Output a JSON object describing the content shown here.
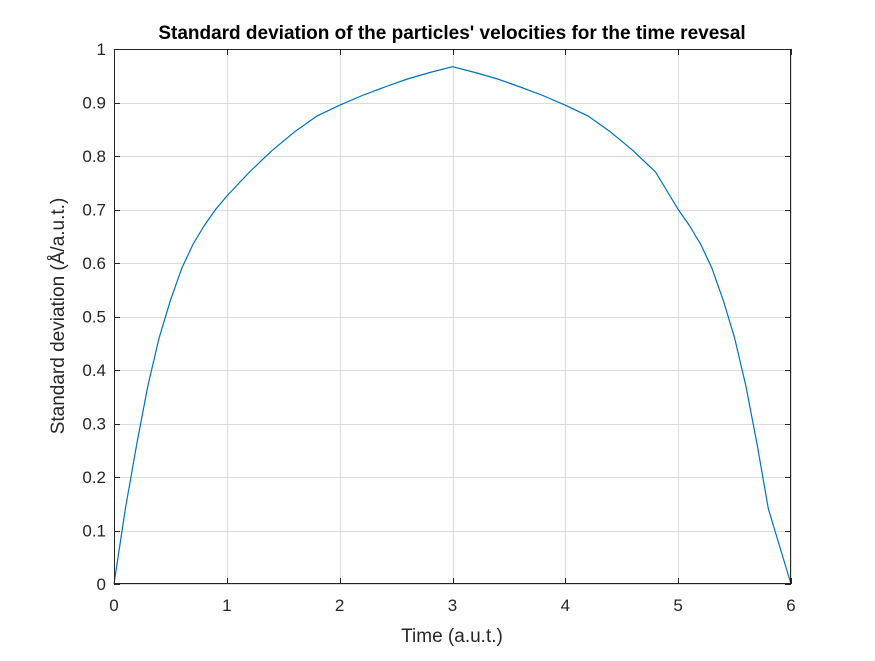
{
  "chart_data": {
    "type": "line",
    "title": "Standard deviation of the particles' velocities for the time revesal",
    "xlabel": "Time (a.u.t.)",
    "ylabel": "Standard deviation (Å/a.u.t.)",
    "xlim": [
      0,
      6
    ],
    "ylim": [
      0,
      1
    ],
    "xticks": [
      0,
      1,
      2,
      3,
      4,
      5,
      6
    ],
    "yticks": [
      0,
      0.1,
      0.2,
      0.3,
      0.4,
      0.5,
      0.6,
      0.7,
      0.8,
      0.9,
      1
    ],
    "xtick_labels": [
      "0",
      "1",
      "2",
      "3",
      "4",
      "5",
      "6"
    ],
    "ytick_labels": [
      "0",
      "0.1",
      "0.2",
      "0.3",
      "0.4",
      "0.5",
      "0.6",
      "0.7",
      "0.8",
      "0.9",
      "1"
    ],
    "grid": true,
    "legend": "none",
    "line_color": "#0072bd",
    "series": [
      {
        "x": [
          0,
          0.1,
          0.2,
          0.3,
          0.4,
          0.5,
          0.6,
          0.7,
          0.8,
          0.9,
          1.0,
          1.2,
          1.4,
          1.6,
          1.8,
          2.0,
          2.2,
          2.4,
          2.6,
          2.8,
          3.0,
          3.2,
          3.4,
          3.6,
          3.8,
          4.0,
          4.2,
          4.4,
          4.6,
          4.8,
          5.0,
          5.1,
          5.2,
          5.3,
          5.4,
          5.5,
          5.6,
          5.7,
          5.8,
          5.9,
          6.0
        ],
        "values": [
          0,
          0.14,
          0.26,
          0.37,
          0.46,
          0.53,
          0.59,
          0.635,
          0.67,
          0.7,
          0.725,
          0.77,
          0.81,
          0.845,
          0.875,
          0.895,
          0.913,
          0.929,
          0.944,
          0.956,
          0.967,
          0.956,
          0.944,
          0.929,
          0.913,
          0.895,
          0.875,
          0.845,
          0.81,
          0.77,
          0.7,
          0.67,
          0.635,
          0.59,
          0.53,
          0.46,
          0.37,
          0.26,
          0.14,
          0.07,
          0
        ]
      }
    ]
  }
}
